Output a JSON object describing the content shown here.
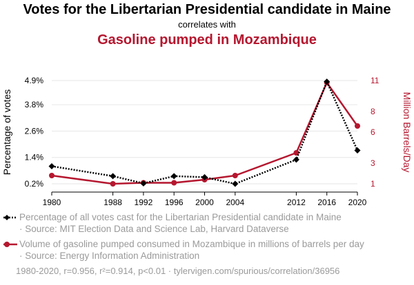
{
  "header": {
    "title": "Votes for the Libertarian Presidential candidate in Maine",
    "subtitle": "correlates with",
    "title2": "Gasoline pumped in Mozambique"
  },
  "legend": {
    "series1_label": "Percentage of all votes cast for the Libertarian Presidential candidate in Maine",
    "series1_source": "· Source: MIT Election Data and Science Lab, Harvard Dataverse",
    "series2_label": "Volume of gasoline pumped consumed in Mozambique in millions of barrels per day",
    "series2_source": "· Source: Energy Information Administration"
  },
  "footer": {
    "text": "1980-2020, r=0.956, r²=0.914, p<0.01 · tylervigen.com/spurious/correlation/36956"
  },
  "colors": {
    "series1": "#000000",
    "series2": "#b5172f",
    "grid": "#e6e6e6",
    "muted": "#9a9a9a"
  },
  "chart_data": {
    "type": "line",
    "x": [
      1980,
      1988,
      1992,
      1996,
      2000,
      2004,
      2012,
      2016,
      2020
    ],
    "categories": [
      "1980",
      "1988",
      "1992",
      "1996",
      "2000",
      "2004",
      "2012",
      "2016",
      "2020"
    ],
    "ylabel": "Percentage of votes",
    "y2label": "Million Barrels/Day",
    "y_ticks": [
      "0.2%",
      "1.4%",
      "2.6%",
      "3.8%",
      "4.9%"
    ],
    "y_tick_values": [
      0.2,
      1.4,
      2.6,
      3.8,
      4.9
    ],
    "y2_ticks": [
      "1",
      "3",
      "6",
      "8",
      "11"
    ],
    "y2_tick_values": [
      1,
      3,
      6,
      8,
      11
    ],
    "ylim": [
      0.2,
      4.9
    ],
    "y2lim": [
      1,
      11
    ],
    "grid": true,
    "series": [
      {
        "name": "Percentage of all votes cast for the Libertarian Presidential candidate in Maine",
        "axis": "left",
        "style": "dotted",
        "marker": "diamond",
        "values": [
          1.0,
          0.55,
          0.22,
          0.55,
          0.5,
          0.2,
          1.3,
          4.85,
          1.72
        ]
      },
      {
        "name": "Volume of gasoline pumped consumed in Mozambique in millions of barrels per day",
        "axis": "right",
        "style": "solid",
        "marker": "circle",
        "values": [
          1.8,
          1.0,
          1.1,
          1.1,
          1.4,
          1.8,
          4.0,
          10.8,
          6.6
        ]
      }
    ]
  }
}
